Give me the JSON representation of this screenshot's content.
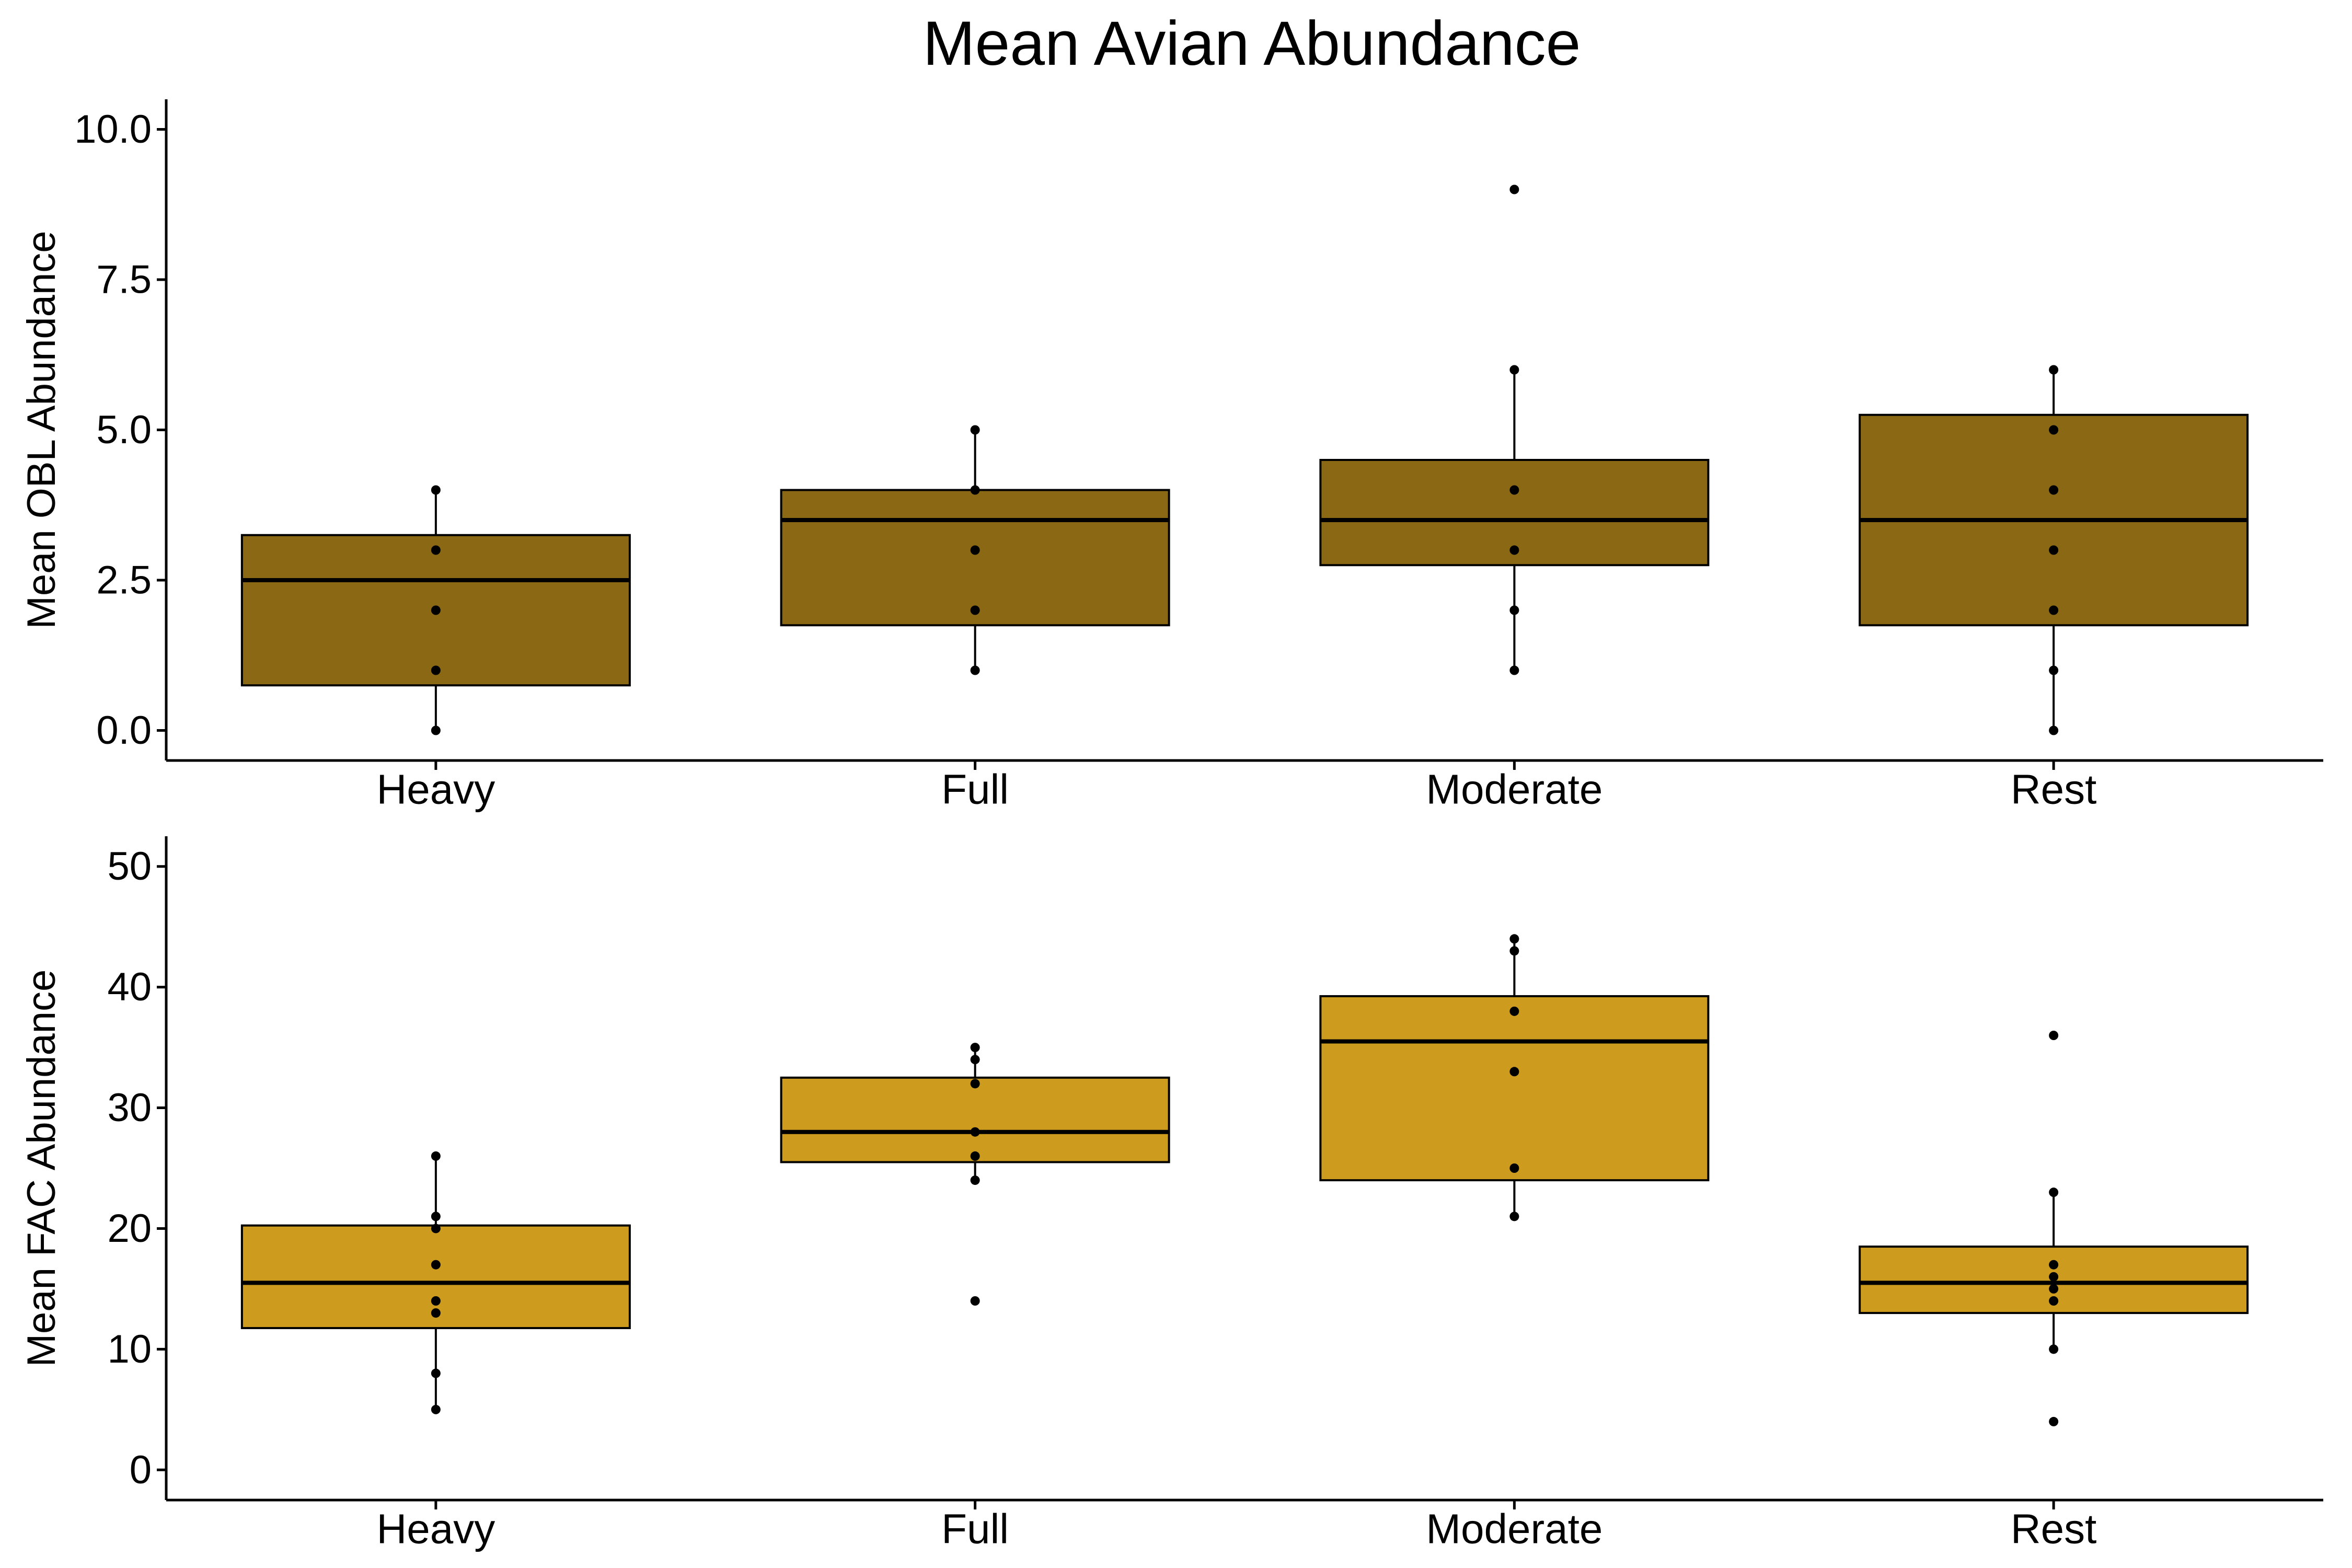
{
  "title": "Mean Avian Abundance",
  "colors": {
    "obl_fill": "#8B6914",
    "fac_fill": "#CD9B1D",
    "stroke": "#000000",
    "background": "#FFFFFF"
  },
  "chart_data": [
    {
      "type": "boxplot",
      "ylabel": "Mean OBL Abundance",
      "xlabel": "",
      "ylim": [
        -0.5,
        10.5
      ],
      "yticks": [
        0,
        2.5,
        5,
        7.5,
        10
      ],
      "ytick_labels": [
        "0.0",
        "2.5",
        "5.0",
        "7.5",
        "10.0"
      ],
      "categories": [
        "Heavy",
        "Full",
        "Moderate",
        "Rest"
      ],
      "boxes": [
        {
          "category": "Heavy",
          "q1": 0.75,
          "median": 2.5,
          "q3": 3.25,
          "whisker_low": 0,
          "whisker_high": 4,
          "points": [
            0,
            1,
            2,
            3,
            4
          ]
        },
        {
          "category": "Full",
          "q1": 1.75,
          "median": 3.5,
          "q3": 4,
          "whisker_low": 1,
          "whisker_high": 5,
          "points": [
            1,
            2,
            3,
            4,
            5
          ]
        },
        {
          "category": "Moderate",
          "q1": 2.75,
          "median": 3.5,
          "q3": 4.5,
          "whisker_low": 1,
          "whisker_high": 6,
          "points": [
            1,
            2,
            3,
            4,
            6,
            9
          ]
        },
        {
          "category": "Rest",
          "q1": 1.75,
          "median": 3.5,
          "q3": 5.25,
          "whisker_low": 0,
          "whisker_high": 6,
          "points": [
            0,
            1,
            2,
            3,
            4,
            5,
            6
          ]
        }
      ]
    },
    {
      "type": "boxplot",
      "ylabel": "Mean FAC Abundance",
      "xlabel": "",
      "ylim": [
        -2.5,
        52.5
      ],
      "yticks": [
        0,
        10,
        20,
        30,
        40,
        50
      ],
      "ytick_labels": [
        "0",
        "10",
        "20",
        "30",
        "40",
        "50"
      ],
      "categories": [
        "Heavy",
        "Full",
        "Moderate",
        "Rest"
      ],
      "boxes": [
        {
          "category": "Heavy",
          "q1": 11.75,
          "median": 15.5,
          "q3": 20.25,
          "whisker_low": 5,
          "whisker_high": 26,
          "points": [
            5,
            8,
            13,
            14,
            17,
            20,
            21,
            26
          ]
        },
        {
          "category": "Full",
          "q1": 25.5,
          "median": 28,
          "q3": 32.5,
          "whisker_low": 24,
          "whisker_high": 35,
          "points": [
            14,
            24,
            26,
            28,
            32,
            34,
            35
          ]
        },
        {
          "category": "Moderate",
          "q1": 24,
          "median": 35.5,
          "q3": 39.25,
          "whisker_low": 21,
          "whisker_high": 44,
          "points": [
            21,
            25,
            33,
            38,
            43,
            44
          ]
        },
        {
          "category": "Rest",
          "q1": 13,
          "median": 15.5,
          "q3": 18.5,
          "whisker_low": 10,
          "whisker_high": 23,
          "points": [
            4,
            10,
            14,
            15,
            16,
            17,
            23,
            36
          ]
        }
      ]
    }
  ]
}
